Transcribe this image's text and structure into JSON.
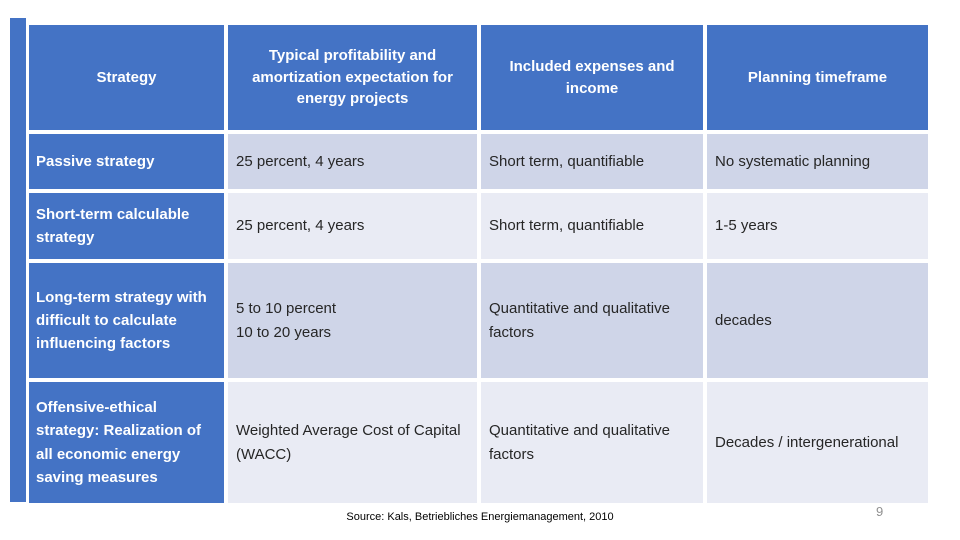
{
  "colors": {
    "header_blue": "#4473C5",
    "band_dark": "#CFD5E8",
    "band_light": "#E9EBF4",
    "body_text": "#262626",
    "page_number_gray": "#909090"
  },
  "table": {
    "columns": [
      "Strategy",
      "Typical profitability and amortization expectation for energy projects",
      "Included expenses and income",
      "Planning timeframe"
    ],
    "rows": [
      {
        "strategy": "Passive strategy",
        "profitability": "25 percent, 4 years",
        "expenses": "Short term, quantifiable",
        "timeframe": "No systematic planning"
      },
      {
        "strategy": "Short-term calculable strategy",
        "profitability": "25 percent, 4 years",
        "expenses": "Short term, quantifiable",
        "timeframe": "1-5 years"
      },
      {
        "strategy": "Long-term strategy with difficult to calculate influencing factors",
        "profitability": "5 to 10 percent\n10 to 20 years",
        "expenses": "Quantitative and qualitative factors",
        "timeframe": "decades"
      },
      {
        "strategy": "Offensive-ethical strategy: Realization of all economic energy saving measures",
        "profitability": "Weighted Average Cost of Capital (WACC)",
        "expenses": "Quantitative and qualitative factors",
        "timeframe": "Decades / intergenerational"
      }
    ]
  },
  "footer": {
    "source": "Source: Kals, Betriebliches Energiemanagement, 2010",
    "page_number": "9"
  }
}
